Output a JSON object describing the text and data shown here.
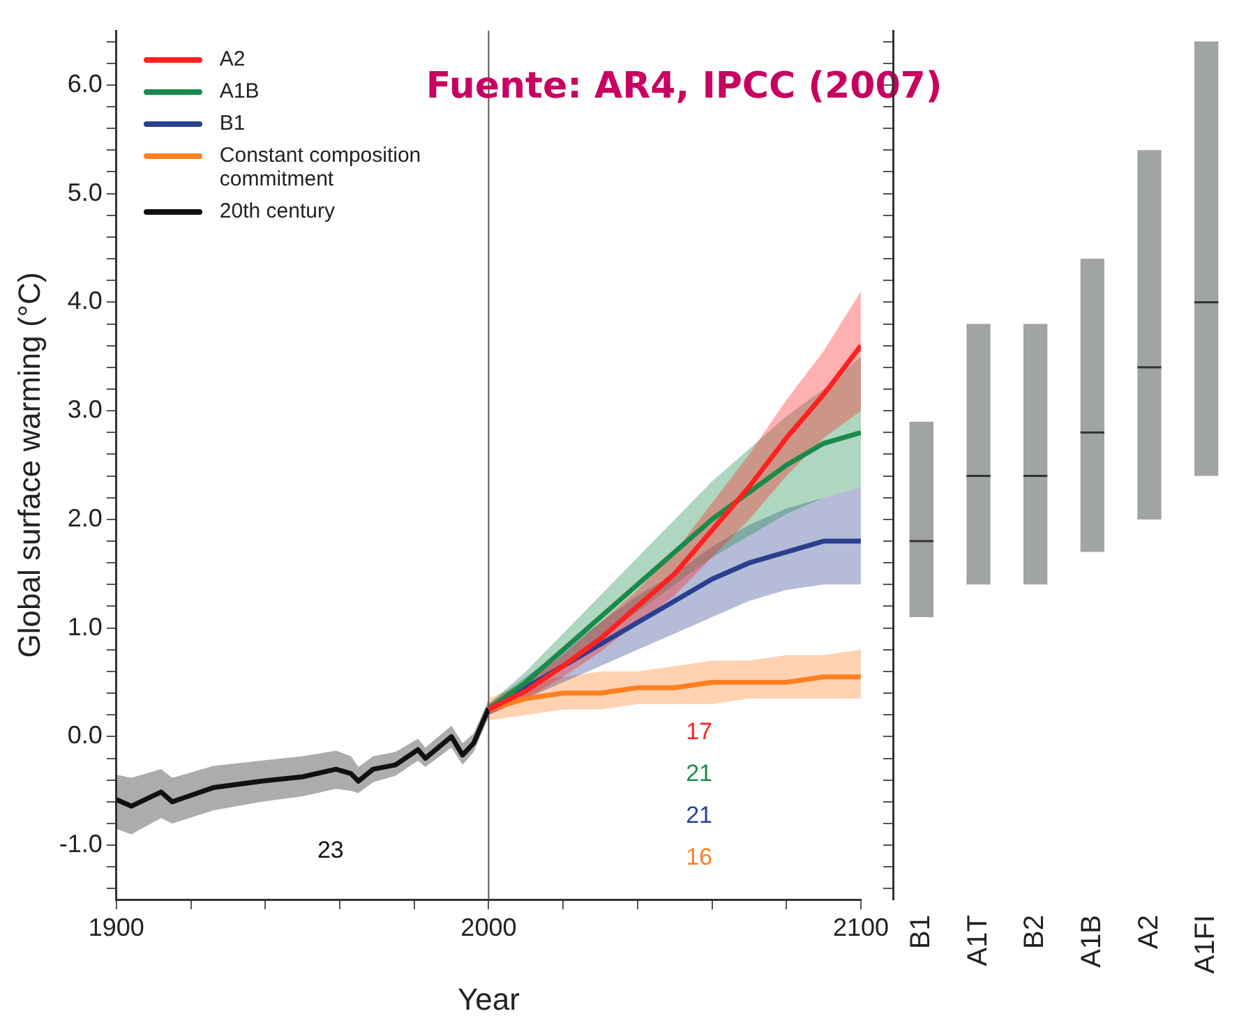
{
  "chart_data": [
    {
      "type": "line",
      "ylabel": "Global surface warming (°C)",
      "xlabel": "Year",
      "xlim": [
        1900,
        2100
      ],
      "xticks": [
        1900,
        {
          "value": 1920,
          "label": null
        },
        {
          "value": 1940,
          "label": null
        },
        {
          "value": 1960,
          "label": null
        },
        {
          "value": 1980,
          "label": null
        },
        2000,
        {
          "value": 2020,
          "label": null
        },
        {
          "value": 2040,
          "label": null
        },
        {
          "value": 2060,
          "label": null
        },
        {
          "value": 2080,
          "label": null
        },
        2100
      ],
      "ylim": [
        -1.5,
        6.5
      ],
      "yticks": [
        {
          "value": -1.4,
          "label": null
        },
        {
          "value": -1.2,
          "label": null
        },
        {
          "value": -1,
          "label": "-1.0"
        },
        {
          "value": -0.8,
          "label": null
        },
        {
          "value": -0.6,
          "label": null
        },
        {
          "value": -0.4,
          "label": null
        },
        {
          "value": -0.2,
          "label": null
        },
        {
          "value": 0,
          "label": "0.0"
        },
        {
          "value": 0.2,
          "label": null
        },
        {
          "value": 0.4,
          "label": null
        },
        {
          "value": 0.6,
          "label": null
        },
        {
          "value": 0.8,
          "label": null
        },
        {
          "value": 1,
          "label": "1.0"
        },
        {
          "value": 1.2,
          "label": null
        },
        {
          "value": 1.4,
          "label": null
        },
        {
          "value": 1.6,
          "label": null
        },
        {
          "value": 1.8,
          "label": null
        },
        {
          "value": 2,
          "label": "2.0"
        },
        {
          "value": 2.2,
          "label": null
        },
        {
          "value": 2.4,
          "label": null
        },
        {
          "value": 2.6,
          "label": null
        },
        {
          "value": 2.8,
          "label": null
        },
        {
          "value": 3,
          "label": "3.0"
        },
        {
          "value": 3.2,
          "label": null
        },
        {
          "value": 3.4,
          "label": null
        },
        {
          "value": 3.6,
          "label": null
        },
        {
          "value": 3.8,
          "label": null
        },
        {
          "value": 4,
          "label": "4.0"
        },
        {
          "value": 4.2,
          "label": null
        },
        {
          "value": 4.4,
          "label": null
        },
        {
          "value": 4.6,
          "label": null
        },
        {
          "value": 4.8,
          "label": null
        },
        {
          "value": 5,
          "label": "5.0"
        },
        {
          "value": 5.2,
          "label": null
        },
        {
          "value": 5.4,
          "label": null
        },
        {
          "value": 5.6,
          "label": null
        },
        {
          "value": 5.8,
          "label": null
        },
        {
          "value": 6,
          "label": "6.0"
        },
        {
          "value": 6.2,
          "label": null
        },
        {
          "value": 6.4,
          "label": null
        }
      ],
      "grid": false,
      "legend": "top left",
      "marker": "none",
      "line_style": "solid",
      "ref_lines": [
        {
          "axis": "x",
          "value": 2000,
          "color": "#555555"
        }
      ],
      "annotations": [
        "Fuente: AR4, IPCC (2007)",
        "23",
        "17",
        "21",
        "21",
        "16"
      ],
      "series": [
        {
          "name": "A2",
          "color": "#ff2020",
          "x": [
            2000,
            2010,
            2020,
            2030,
            2040,
            2050,
            2060,
            2070,
            2080,
            2090,
            2100
          ],
          "values": [
            0.25,
            0.42,
            0.65,
            0.9,
            1.2,
            1.5,
            1.9,
            2.3,
            2.75,
            3.15,
            3.6
          ],
          "lower": [
            0.2,
            0.35,
            0.55,
            0.78,
            1.05,
            1.3,
            1.65,
            2.0,
            2.4,
            2.75,
            3.0
          ],
          "upper": [
            0.3,
            0.5,
            0.75,
            1.05,
            1.35,
            1.7,
            2.15,
            2.6,
            3.1,
            3.55,
            4.1
          ]
        },
        {
          "name": "A1B",
          "color": "#1a8a4a",
          "x": [
            2000,
            2010,
            2020,
            2030,
            2040,
            2050,
            2060,
            2070,
            2080,
            2090,
            2100
          ],
          "values": [
            0.25,
            0.5,
            0.8,
            1.1,
            1.4,
            1.7,
            2.0,
            2.25,
            2.5,
            2.7,
            2.8
          ],
          "lower": [
            0.2,
            0.4,
            0.65,
            0.9,
            1.15,
            1.4,
            1.65,
            1.85,
            2.05,
            2.2,
            2.3
          ],
          "upper": [
            0.3,
            0.6,
            0.95,
            1.3,
            1.65,
            2.0,
            2.35,
            2.65,
            2.95,
            3.2,
            3.5
          ]
        },
        {
          "name": "B1",
          "color": "#2a3f8f",
          "x": [
            2000,
            2010,
            2020,
            2030,
            2040,
            2050,
            2060,
            2070,
            2080,
            2090,
            2100
          ],
          "values": [
            0.25,
            0.45,
            0.65,
            0.85,
            1.05,
            1.25,
            1.45,
            1.6,
            1.7,
            1.8,
            1.8
          ],
          "lower": [
            0.2,
            0.35,
            0.5,
            0.65,
            0.8,
            0.95,
            1.1,
            1.25,
            1.35,
            1.4,
            1.4
          ],
          "upper": [
            0.3,
            0.55,
            0.8,
            1.05,
            1.3,
            1.5,
            1.75,
            1.95,
            2.1,
            2.2,
            2.3
          ]
        },
        {
          "name": "Constant composition commitment",
          "color": "#ff7f20",
          "x": [
            2000,
            2010,
            2020,
            2030,
            2040,
            2050,
            2060,
            2070,
            2080,
            2090,
            2100
          ],
          "values": [
            0.25,
            0.35,
            0.4,
            0.4,
            0.45,
            0.45,
            0.5,
            0.5,
            0.5,
            0.55,
            0.55
          ],
          "lower": [
            0.15,
            0.2,
            0.25,
            0.25,
            0.3,
            0.3,
            0.3,
            0.35,
            0.35,
            0.35,
            0.35
          ],
          "upper": [
            0.35,
            0.5,
            0.55,
            0.6,
            0.6,
            0.65,
            0.7,
            0.7,
            0.75,
            0.75,
            0.8
          ]
        },
        {
          "name": "20th century",
          "color": "#111111",
          "x": [
            1900,
            1904,
            1912,
            1915,
            1926,
            1939,
            1950,
            1959,
            1963,
            1965,
            1969,
            1975,
            1981,
            1983,
            1990,
            1993,
            1996,
            2000
          ],
          "values": [
            -0.58,
            -0.64,
            -0.51,
            -0.6,
            -0.47,
            -0.41,
            -0.37,
            -0.3,
            -0.34,
            -0.41,
            -0.3,
            -0.26,
            -0.12,
            -0.2,
            0.0,
            -0.17,
            -0.06,
            0.26
          ],
          "lower": [
            -0.85,
            -0.9,
            -0.75,
            -0.8,
            -0.68,
            -0.6,
            -0.55,
            -0.48,
            -0.5,
            -0.52,
            -0.42,
            -0.36,
            -0.22,
            -0.28,
            -0.1,
            -0.26,
            -0.14,
            0.18
          ],
          "upper": [
            -0.35,
            -0.38,
            -0.3,
            -0.38,
            -0.27,
            -0.22,
            -0.18,
            -0.13,
            -0.18,
            -0.28,
            -0.18,
            -0.14,
            -0.02,
            -0.1,
            0.1,
            -0.06,
            0.03,
            0.34
          ]
        }
      ]
    },
    {
      "type": "box",
      "categories": [
        "B1",
        "A1T",
        "B2",
        "A1B",
        "A2",
        "A1FI"
      ],
      "ylim": [
        -1.5,
        6.5
      ],
      "yticks": [
        {
          "value": -1.4,
          "label": null
        },
        {
          "value": -1.2,
          "label": null
        },
        {
          "value": -1,
          "label": null
        },
        {
          "value": -0.8,
          "label": null
        },
        {
          "value": -0.6,
          "label": null
        },
        {
          "value": -0.4,
          "label": null
        },
        {
          "value": -0.2,
          "label": null
        },
        {
          "value": 0,
          "label": null
        },
        {
          "value": 0.2,
          "label": null
        },
        {
          "value": 0.4,
          "label": null
        },
        {
          "value": 0.6,
          "label": null
        },
        {
          "value": 0.8,
          "label": null
        },
        {
          "value": 1,
          "label": null
        },
        {
          "value": 1.2,
          "label": null
        },
        {
          "value": 1.4,
          "label": null
        },
        {
          "value": 1.6,
          "label": null
        },
        {
          "value": 1.8,
          "label": null
        },
        {
          "value": 2,
          "label": null
        },
        {
          "value": 2.2,
          "label": null
        },
        {
          "value": 2.4,
          "label": null
        },
        {
          "value": 2.6,
          "label": null
        },
        {
          "value": 2.8,
          "label": null
        },
        {
          "value": 3,
          "label": null
        },
        {
          "value": 3.2,
          "label": null
        },
        {
          "value": 3.4,
          "label": null
        },
        {
          "value": 3.6,
          "label": null
        },
        {
          "value": 3.8,
          "label": null
        },
        {
          "value": 4,
          "label": null
        },
        {
          "value": 4.2,
          "label": null
        },
        {
          "value": 4.4,
          "label": null
        },
        {
          "value": 4.6,
          "label": null
        },
        {
          "value": 4.8,
          "label": null
        },
        {
          "value": 5,
          "label": null
        },
        {
          "value": 5.2,
          "label": null
        },
        {
          "value": 5.4,
          "label": null
        },
        {
          "value": 5.6,
          "label": null
        },
        {
          "value": 5.8,
          "label": null
        },
        {
          "value": 6,
          "label": null
        },
        {
          "value": 6.2,
          "label": null
        },
        {
          "value": 6.4,
          "label": null
        }
      ],
      "tick_labels": "x",
      "grid": false,
      "series": [
        {
          "color": "#a0a4a2",
          "boxes": [
            {
              "low": 1.1,
              "q1": 1.1,
              "median": 1.8,
              "q3": 2.9,
              "high": 2.9
            },
            {
              "low": 1.4,
              "q1": 1.4,
              "median": 2.4,
              "q3": 3.8,
              "high": 3.8
            },
            {
              "low": 1.4,
              "q1": 1.4,
              "median": 2.4,
              "q3": 3.8,
              "high": 3.8
            },
            {
              "low": 1.7,
              "q1": 1.7,
              "median": 2.8,
              "q3": 4.4,
              "high": 4.4
            },
            {
              "low": 2.0,
              "q1": 2.0,
              "median": 3.4,
              "q3": 5.4,
              "high": 5.4
            },
            {
              "low": 2.4,
              "q1": 2.4,
              "median": 4.0,
              "q3": 6.4,
              "high": 6.4
            }
          ]
        }
      ]
    }
  ]
}
